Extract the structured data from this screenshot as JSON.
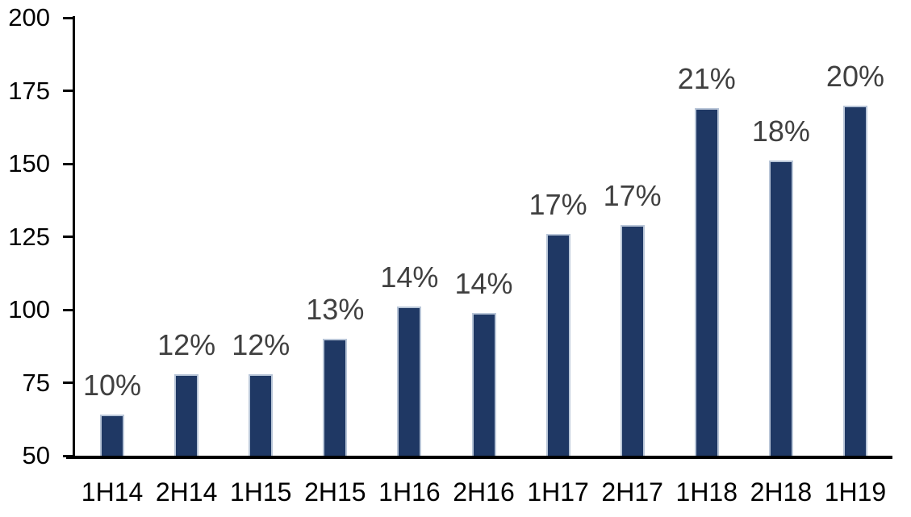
{
  "chart_data": {
    "type": "bar",
    "title": "",
    "xlabel": "",
    "ylabel": "",
    "categories": [
      "1H14",
      "2H14",
      "1H15",
      "2H15",
      "1H16",
      "2H16",
      "1H17",
      "2H17",
      "1H18",
      "2H18",
      "1H19"
    ],
    "values": [
      64,
      78,
      78,
      90,
      101,
      99,
      126,
      129,
      169,
      151,
      170
    ],
    "data_labels": [
      "10%",
      "12%",
      "12%",
      "13%",
      "14%",
      "14%",
      "17%",
      "17%",
      "21%",
      "18%",
      "20%"
    ],
    "ylim": [
      50,
      200
    ],
    "yticks": [
      50,
      75,
      100,
      125,
      150,
      175,
      200
    ],
    "ytick_labels": [
      "50",
      "75",
      "100",
      "125",
      "150",
      "175",
      "200"
    ],
    "grid": false,
    "legend_position": "none",
    "colors": {
      "bar_fill": "#1f3864",
      "bar_border": "#b9c6d8",
      "data_label": "#404040",
      "axis": "#000000",
      "background": "#ffffff"
    }
  }
}
